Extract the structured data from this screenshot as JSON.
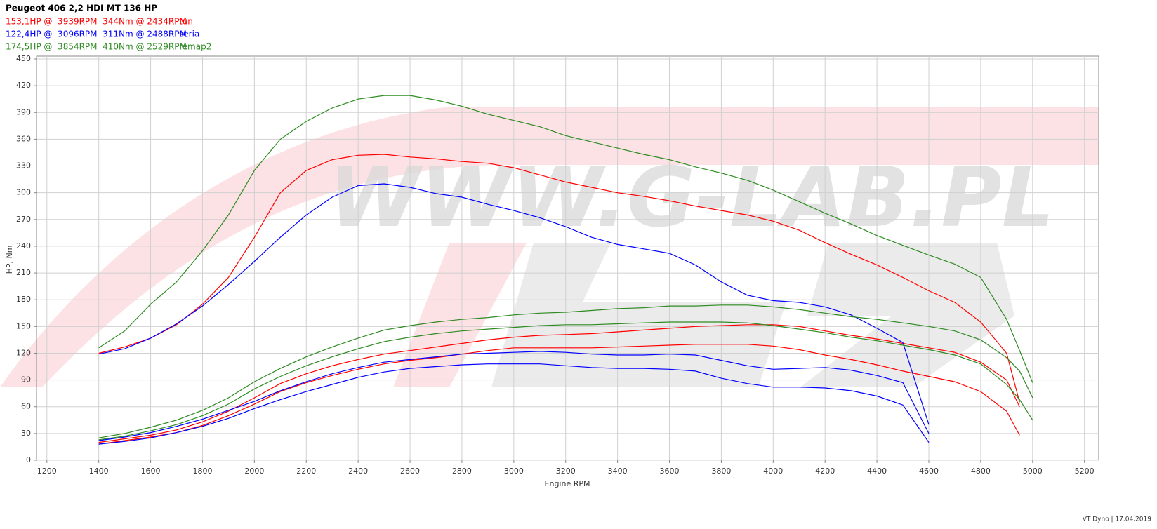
{
  "chart_data": {
    "type": "line",
    "title": "Peugeot 406 2,2 HDI MT 136 HP",
    "x_label": "Engine RPM",
    "y_label": "HP, Nm",
    "watermark": "WWW.G-LAB.PL",
    "footer": "VT Dyno | 17.04.2019",
    "xlim": [
      1160,
      5255
    ],
    "ylim": [
      0,
      450
    ],
    "xticks": [
      1200,
      1400,
      1600,
      1800,
      2000,
      2200,
      2400,
      2600,
      2800,
      3000,
      3200,
      3400,
      3600,
      3800,
      4000,
      4200,
      4400,
      4600,
      4800,
      5000,
      5200
    ],
    "yticks": [
      0,
      30,
      60,
      90,
      120,
      150,
      180,
      210,
      240,
      270,
      300,
      330,
      360,
      390,
      420,
      450
    ],
    "grid": true,
    "x": [
      1400,
      1500,
      1600,
      1700,
      1800,
      1900,
      2000,
      2100,
      2200,
      2300,
      2400,
      2500,
      2600,
      2700,
      2800,
      2900,
      3000,
      3100,
      3200,
      3300,
      3400,
      3500,
      3600,
      3700,
      3800,
      3900,
      4000,
      4100,
      4200,
      4300,
      4400,
      4500,
      4600,
      4700,
      4800,
      4900,
      4950,
      5000
    ],
    "series": [
      {
        "name": "tun",
        "color": "#ff0000",
        "summary": "153,1HP @  3939RPM  344Nm @ 2434RPM",
        "curves": [
          [
            120,
            127,
            137,
            152,
            175,
            205,
            250,
            300,
            325,
            337,
            342,
            343,
            340,
            338,
            335,
            333,
            328,
            320,
            312,
            306,
            300,
            296,
            291,
            285,
            280,
            275,
            268,
            258,
            244,
            231,
            219,
            205,
            190,
            177,
            155,
            120,
            65,
            null
          ],
          [
            20,
            24,
            28,
            34,
            43,
            55,
            70,
            86,
            97,
            106,
            113,
            119,
            123,
            127,
            131,
            135,
            138,
            140,
            141,
            142,
            144,
            146,
            148,
            150,
            151,
            152,
            152,
            150,
            145,
            140,
            136,
            131,
            126,
            121,
            110,
            90,
            60,
            null
          ],
          [
            18,
            22,
            26,
            31,
            39,
            50,
            63,
            77,
            87,
            95,
            102,
            108,
            112,
            115,
            119,
            123,
            126,
            126,
            126,
            126,
            127,
            128,
            129,
            130,
            130,
            130,
            128,
            124,
            118,
            113,
            107,
            100,
            94,
            88,
            77,
            55,
            28,
            null
          ]
        ]
      },
      {
        "name": "seria",
        "color": "#0000ff",
        "summary": "122,4HP @  3096RPM  311Nm @ 2488RPM",
        "curves": [
          [
            119,
            125,
            137,
            153,
            173,
            197,
            223,
            250,
            275,
            295,
            308,
            310,
            306,
            299,
            295,
            287,
            280,
            272,
            262,
            250,
            242,
            237,
            232,
            219,
            200,
            185,
            179,
            177,
            172,
            163,
            148,
            132,
            40,
            null,
            null,
            null,
            null,
            null
          ],
          [
            22,
            26,
            31,
            38,
            46,
            56,
            66,
            78,
            88,
            97,
            104,
            110,
            113,
            116,
            119,
            120,
            121,
            122,
            121,
            119,
            118,
            118,
            119,
            118,
            112,
            106,
            102,
            103,
            104,
            101,
            95,
            87,
            30,
            null,
            null,
            null,
            null,
            null
          ],
          [
            18,
            21,
            25,
            31,
            38,
            47,
            58,
            68,
            77,
            85,
            93,
            99,
            103,
            105,
            107,
            108,
            108,
            108,
            106,
            104,
            103,
            103,
            102,
            100,
            92,
            86,
            82,
            82,
            81,
            78,
            72,
            62,
            20,
            null,
            null,
            null,
            null,
            null
          ]
        ]
      },
      {
        "name": "remap2",
        "color": "#2e8b22",
        "summary": "174,5HP @  3854RPM  410Nm @ 2529RPM",
        "curves": [
          [
            126,
            145,
            175,
            200,
            235,
            275,
            325,
            360,
            380,
            395,
            405,
            409,
            409,
            404,
            397,
            388,
            381,
            374,
            364,
            357,
            350,
            343,
            337,
            329,
            322,
            314,
            303,
            290,
            277,
            265,
            252,
            241,
            230,
            220,
            205,
            158,
            123,
            87
          ],
          [
            25,
            30,
            37,
            45,
            56,
            70,
            88,
            103,
            116,
            127,
            137,
            146,
            151,
            155,
            158,
            160,
            163,
            165,
            166,
            168,
            170,
            171,
            173,
            173,
            174,
            174,
            172,
            169,
            165,
            161,
            158,
            154,
            150,
            145,
            135,
            115,
            100,
            70
          ],
          [
            23,
            27,
            33,
            40,
            50,
            63,
            80,
            94,
            106,
            116,
            125,
            133,
            138,
            142,
            145,
            147,
            149,
            151,
            152,
            152,
            153,
            154,
            155,
            155,
            155,
            154,
            151,
            147,
            143,
            138,
            134,
            129,
            124,
            118,
            108,
            85,
            68,
            45
          ]
        ]
      }
    ]
  }
}
